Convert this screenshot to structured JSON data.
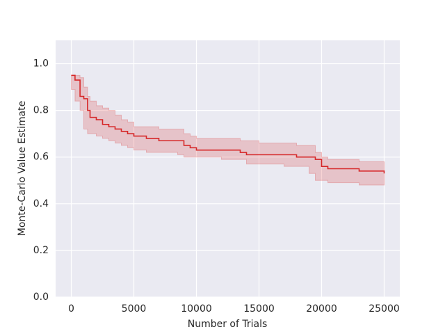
{
  "chart_data": {
    "type": "line",
    "drawstyle": "steps-post",
    "xlabel": "Number of Trials",
    "ylabel": "Monte-Carlo Value Estimate",
    "color": "#d62728",
    "band_color": "#d62728",
    "grid": true,
    "x": [
      0,
      300,
      700,
      1000,
      1300,
      1500,
      2000,
      2500,
      3000,
      3500,
      4000,
      4500,
      5000,
      6000,
      7000,
      8500,
      9000,
      9500,
      10000,
      12000,
      13500,
      14000,
      15000,
      17000,
      18000,
      19000,
      19500,
      20000,
      20500,
      22000,
      23000,
      25000
    ],
    "values": [
      0.95,
      0.93,
      0.86,
      0.85,
      0.8,
      0.77,
      0.76,
      0.74,
      0.73,
      0.72,
      0.71,
      0.7,
      0.69,
      0.68,
      0.67,
      0.67,
      0.65,
      0.64,
      0.63,
      0.63,
      0.62,
      0.61,
      0.61,
      0.61,
      0.6,
      0.6,
      0.59,
      0.56,
      0.55,
      0.55,
      0.54,
      0.53
    ],
    "band_upper": [
      0.95,
      0.95,
      0.94,
      0.9,
      0.86,
      0.84,
      0.82,
      0.81,
      0.8,
      0.78,
      0.76,
      0.75,
      0.73,
      0.73,
      0.72,
      0.72,
      0.7,
      0.69,
      0.68,
      0.68,
      0.67,
      0.67,
      0.66,
      0.66,
      0.65,
      0.65,
      0.62,
      0.6,
      0.59,
      0.59,
      0.58,
      0.58
    ],
    "band_lower": [
      0.91,
      0.89,
      0.84,
      0.8,
      0.72,
      0.7,
      0.7,
      0.69,
      0.68,
      0.67,
      0.66,
      0.65,
      0.64,
      0.63,
      0.62,
      0.62,
      0.61,
      0.6,
      0.6,
      0.6,
      0.59,
      0.59,
      0.57,
      0.57,
      0.56,
      0.56,
      0.53,
      0.5,
      0.5,
      0.49,
      0.49,
      0.48
    ],
    "xlim": [
      -1250,
      26250
    ],
    "ylim": [
      0,
      1.1
    ],
    "xticks": [
      0,
      5000,
      10000,
      15000,
      20000,
      25000
    ],
    "yticks": [
      {
        "value": 0,
        "label": "0.0"
      },
      {
        "value": 0.2,
        "label": "0.2"
      },
      {
        "value": 0.4,
        "label": "0.4"
      },
      {
        "value": 0.6,
        "label": "0.6"
      },
      {
        "value": 0.8,
        "label": "0.8"
      },
      {
        "value": 1,
        "label": "1.0"
      }
    ]
  }
}
